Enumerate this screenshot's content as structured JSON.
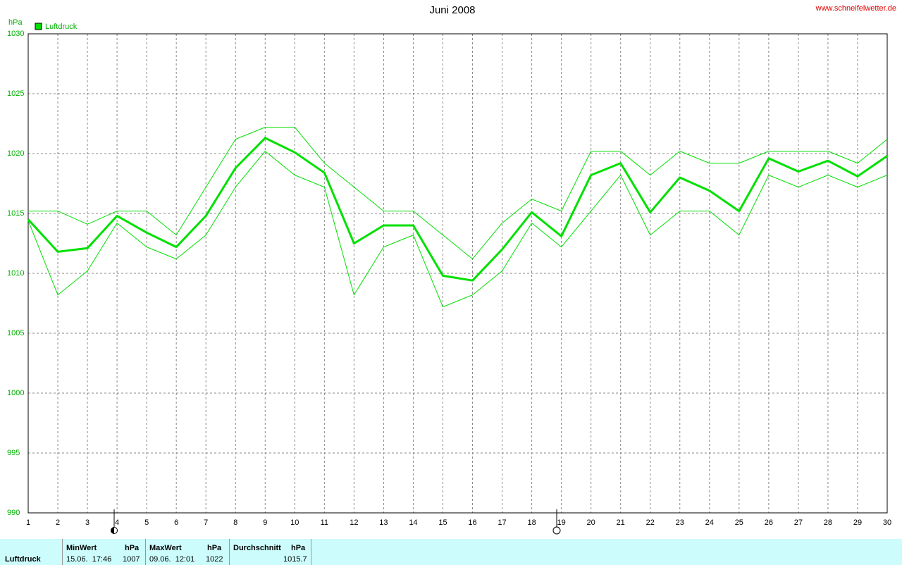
{
  "chart_data": {
    "type": "line",
    "title": "Juni 2008",
    "source": "www.schneifelwetter.de",
    "y_unit": "hPa",
    "x": [
      1,
      2,
      3,
      4,
      5,
      6,
      7,
      8,
      9,
      10,
      11,
      12,
      13,
      14,
      15,
      16,
      17,
      18,
      19,
      20,
      21,
      22,
      23,
      24,
      25,
      26,
      27,
      28,
      29,
      30
    ],
    "xlim": [
      1,
      30
    ],
    "xticks": [
      1,
      2,
      3,
      4,
      5,
      6,
      7,
      8,
      9,
      10,
      11,
      12,
      13,
      14,
      15,
      16,
      17,
      18,
      19,
      20,
      21,
      22,
      23,
      24,
      25,
      26,
      27,
      28,
      29,
      30
    ],
    "ylim": [
      990,
      1030
    ],
    "yticks": [
      990,
      995,
      1000,
      1005,
      1010,
      1015,
      1020,
      1025,
      1030
    ],
    "grid": true,
    "legend": "top-left",
    "series": [
      {
        "name": "Luftdruck",
        "color": "#00e000",
        "line_width": 3,
        "values": [
          1014.5,
          1011.8,
          1012.1,
          1014.8,
          1013.4,
          1012.2,
          1014.8,
          1018.8,
          1021.3,
          1020.1,
          1018.4,
          1012.5,
          1014.0,
          1014.0,
          1009.8,
          1009.4,
          1012.0,
          1015.1,
          1013.1,
          1018.2,
          1019.2,
          1015.1,
          1018.0,
          1016.9,
          1015.2,
          1019.6,
          1018.5,
          1019.4,
          1018.1,
          1019.8
        ]
      },
      {
        "color": "#00e000",
        "line_width": 1,
        "values": [
          1015.2,
          1015.2,
          1014.1,
          1015.2,
          1015.2,
          1013.2,
          1017.2,
          1021.2,
          1022.2,
          1022.2,
          1019.2,
          1017.2,
          1015.2,
          1015.2,
          1013.2,
          1011.2,
          1014.2,
          1016.2,
          1015.2,
          1020.2,
          1020.2,
          1018.2,
          1020.2,
          1019.2,
          1019.2,
          1020.2,
          1020.2,
          1020.2,
          1019.2,
          1021.2
        ]
      },
      {
        "color": "#00e000",
        "line_width": 1,
        "values": [
          1014.4,
          1008.2,
          1010.2,
          1014.2,
          1012.2,
          1011.2,
          1013.2,
          1017.2,
          1020.2,
          1018.2,
          1017.2,
          1008.2,
          1012.2,
          1013.2,
          1007.2,
          1008.2,
          1010.2,
          1014.2,
          1012.2,
          1015.2,
          1018.2,
          1013.2,
          1015.2,
          1015.2,
          1013.2,
          1018.2,
          1017.2,
          1018.2,
          1017.2,
          1018.2
        ]
      }
    ]
  },
  "stats": {
    "label": "Luftdruck",
    "min": {
      "title": "MinWert",
      "unit": "hPa",
      "time": "15.06.  17:46",
      "value": 1007
    },
    "max": {
      "title": "MaxWert",
      "unit": "hPa",
      "time": "09.06.  12:01",
      "value": 1022
    },
    "avg": {
      "title": "Durchschnitt",
      "unit": "hPa",
      "value": 1015.7
    }
  }
}
